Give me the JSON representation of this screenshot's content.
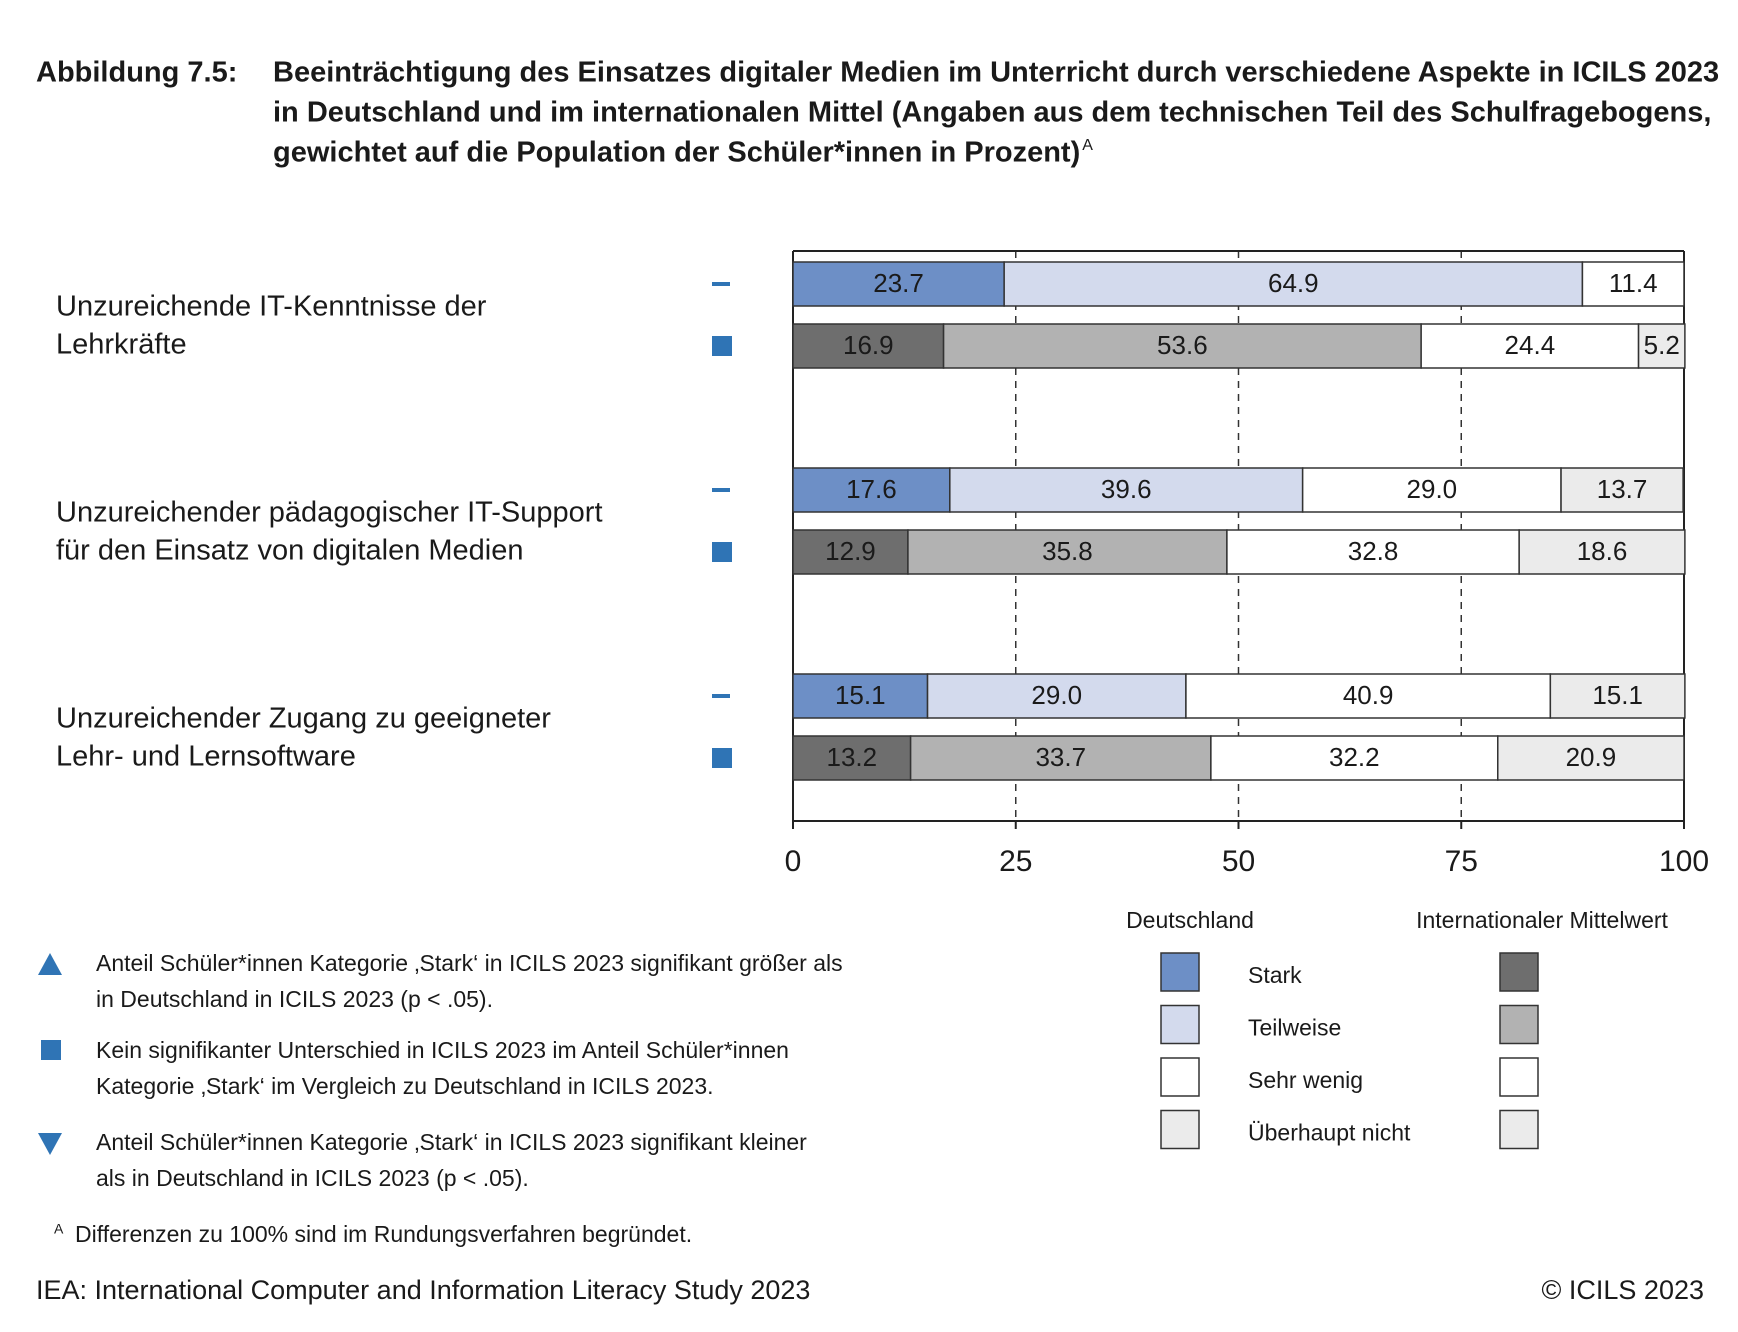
{
  "header": {
    "number": "Abbildung 7.5:",
    "title_lines": [
      "Beeinträchtigung des Einsatzes digitaler Medien im Unterricht durch verschiedene Aspekte in ICILS 2023",
      "in Deutschland und im internationalen Mittel (Angaben aus dem technischen Teil des Schulfragebogens,",
      "gewichtet auf die Population der Schüler*innen in Prozent)"
    ],
    "title_note": "A"
  },
  "chart_data": {
    "type": "bar",
    "orientation": "horizontal",
    "stacked": true,
    "categories": [
      [
        "Unzureichende IT-Kenntnisse der",
        "Lehrkräfte"
      ],
      [
        "Unzureichender pädagogischer IT-Support",
        "für den Einsatz von digitalen Medien"
      ],
      [
        "Unzureichender Zugang zu geeigneter",
        "Lehr- und Lernsoftware"
      ]
    ],
    "legend_labels": [
      "Stark",
      "Teilweise",
      "Sehr wenig",
      "Überhaupt nicht"
    ],
    "groups": [
      {
        "name": "Deutschland",
        "series": [
          {
            "color": "#6d8fc6",
            "values": [
              23.7,
              17.6,
              15.1
            ],
            "value_labels": [
              "23.7",
              "17.6",
              "15.1"
            ]
          },
          {
            "color": "#d3daed",
            "values": [
              64.9,
              39.6,
              29.0
            ],
            "value_labels": [
              "64.9",
              "39.6",
              "29.0"
            ]
          },
          {
            "color": "#ffffff",
            "values": [
              11.4,
              29.0,
              40.9
            ],
            "value_labels": [
              "11.4",
              "29.0",
              "40.9"
            ]
          },
          {
            "color": "#ebebeb",
            "values": [
              null,
              13.7,
              15.1
            ],
            "value_labels": [
              null,
              "13.7",
              "15.1"
            ]
          }
        ]
      },
      {
        "name": "Internationaler Mittelwert",
        "series": [
          {
            "color": "#6e6e6e",
            "values": [
              16.9,
              12.9,
              13.2
            ],
            "value_labels": [
              "16.9",
              "12.9",
              "13.2"
            ]
          },
          {
            "color": "#b2b2b2",
            "values": [
              53.6,
              35.8,
              33.7
            ],
            "value_labels": [
              "53.6",
              "35.8",
              "33.7"
            ]
          },
          {
            "color": "#ffffff",
            "values": [
              24.4,
              32.8,
              32.2
            ],
            "value_labels": [
              "24.4",
              "32.8",
              "32.2"
            ]
          },
          {
            "color": "#ebebeb",
            "values": [
              5.2,
              18.6,
              20.9
            ],
            "value_labels": [
              "5.2",
              "18.6",
              "20.9"
            ]
          }
        ]
      }
    ],
    "xlim": [
      0,
      100
    ],
    "xticks": [
      0,
      25,
      50,
      75,
      100
    ],
    "grid": true,
    "legend_position": "bottom-right"
  },
  "notes": [
    [
      "Anteil Schüler*innen Kategorie ‚Stark‘ in ICILS 2023 signifikant größer als",
      "in Deutschland in ICILS 2023 (p < .05)."
    ],
    [
      "Kein signifikanter Unterschied in ICILS 2023 im Anteil Schüler*innen",
      "Kategorie ‚Stark‘ im Vergleich zu Deutschland in ICILS 2023."
    ],
    [
      "Anteil Schüler*innen Kategorie ‚Stark‘ in ICILS 2023 signifikant kleiner",
      "als in Deutschland in ICILS 2023 (p < .05)."
    ]
  ],
  "footnote": {
    "mark": "A",
    "text": "Differenzen zu 100% sind im Rundungsverfahren begründet."
  },
  "source": "IEA: International Computer and Information Literacy Study 2023",
  "copyright": "© ICILS 2023"
}
